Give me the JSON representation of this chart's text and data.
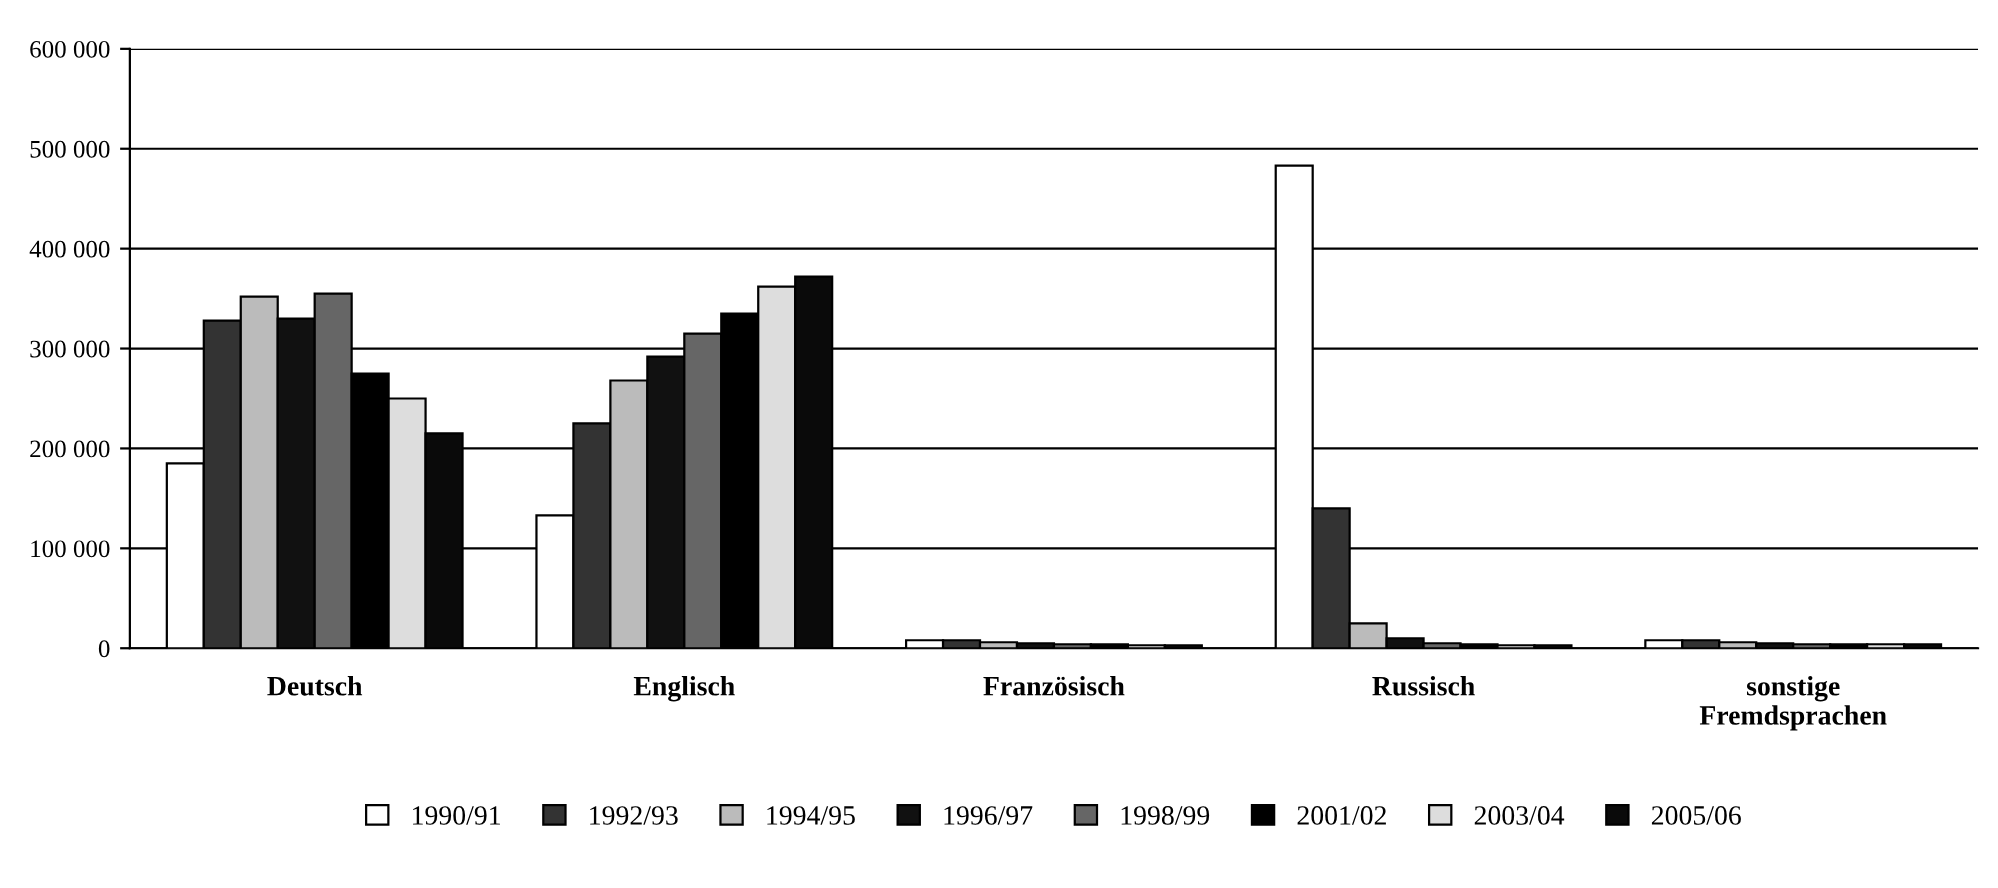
{
  "chart_data": {
    "type": "bar",
    "categories": [
      "Deutsch",
      "Englisch",
      "Französisch",
      "Russisch",
      "sonstige\nFremdsprachen"
    ],
    "series": [
      {
        "name": "1990/91",
        "color": "#ffffff",
        "values": [
          185000,
          133000,
          8000,
          483000,
          8000
        ]
      },
      {
        "name": "1992/93",
        "color": "#333333",
        "values": [
          328000,
          225000,
          8000,
          140000,
          8000
        ]
      },
      {
        "name": "1994/95",
        "color": "#bbbbbb",
        "values": [
          352000,
          268000,
          6000,
          25000,
          6000
        ]
      },
      {
        "name": "1996/97",
        "color": "#111111",
        "values": [
          330000,
          292000,
          5000,
          10000,
          5000
        ]
      },
      {
        "name": "1998/99",
        "color": "#666666",
        "values": [
          355000,
          315000,
          4000,
          5000,
          4000
        ]
      },
      {
        "name": "2001/02",
        "color": "#000000",
        "values": [
          275000,
          335000,
          4000,
          4000,
          4000
        ]
      },
      {
        "name": "2003/04",
        "color": "#dddddd",
        "values": [
          250000,
          362000,
          3000,
          3000,
          4000
        ]
      },
      {
        "name": "2005/06",
        "color": "#0a0a0a",
        "values": [
          215000,
          372000,
          3000,
          3000,
          4000
        ]
      }
    ],
    "ylim": [
      0,
      600000
    ],
    "yticks": [
      {
        "value": 0,
        "label": "0"
      },
      {
        "value": 100000,
        "label": "100 000"
      },
      {
        "value": 200000,
        "label": "200 000"
      },
      {
        "value": 300000,
        "label": "300 000"
      },
      {
        "value": 400000,
        "label": "400 000"
      },
      {
        "value": 500000,
        "label": "500 000"
      },
      {
        "value": 600000,
        "label": "600 000"
      }
    ],
    "grid": "y",
    "legend": "bottom"
  }
}
